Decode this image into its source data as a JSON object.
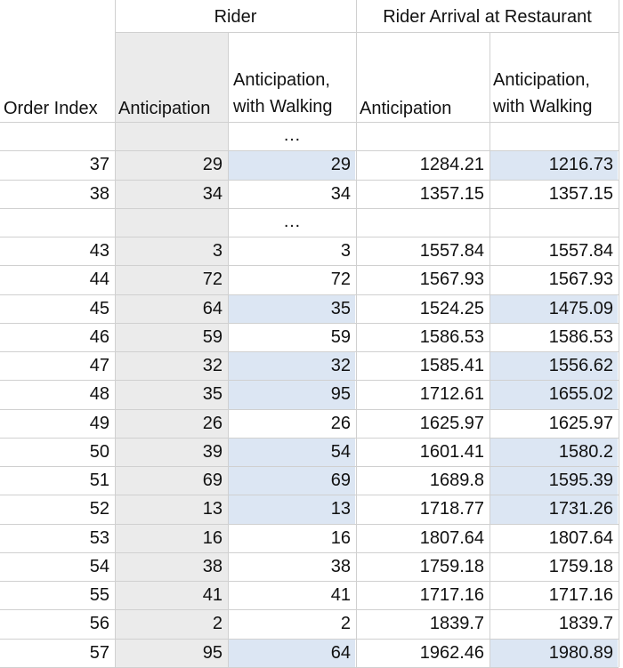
{
  "colors": {
    "grey_band": "#ebebeb",
    "blue_highlight": "#dce6f3",
    "grid": "#d0d0d0",
    "text": "#111111"
  },
  "groups": {
    "rider": "Rider",
    "arrival": "Rider Arrival at Restaurant"
  },
  "headers": {
    "order_index": "Order Index",
    "rider_anticipation": "Anticipation",
    "rider_walking": "Anticipation, with Walking",
    "arrival_anticipation": "Anticipation",
    "arrival_walking": "Anticipation, with Walking"
  },
  "ellipsis": "…",
  "rows": [
    {
      "type": "gap"
    },
    {
      "type": "data",
      "cells": [
        "37",
        "29",
        "29",
        "1284.21",
        "1216.73"
      ],
      "hl": true
    },
    {
      "type": "data",
      "cells": [
        "38",
        "34",
        "34",
        "1357.15",
        "1357.15"
      ],
      "hl": false
    },
    {
      "type": "gap"
    },
    {
      "type": "data",
      "cells": [
        "43",
        "3",
        "3",
        "1557.84",
        "1557.84"
      ],
      "hl": false
    },
    {
      "type": "data",
      "cells": [
        "44",
        "72",
        "72",
        "1567.93",
        "1567.93"
      ],
      "hl": false
    },
    {
      "type": "data",
      "cells": [
        "45",
        "64",
        "35",
        "1524.25",
        "1475.09"
      ],
      "hl": true
    },
    {
      "type": "data",
      "cells": [
        "46",
        "59",
        "59",
        "1586.53",
        "1586.53"
      ],
      "hl": false
    },
    {
      "type": "data",
      "cells": [
        "47",
        "32",
        "32",
        "1585.41",
        "1556.62"
      ],
      "hl": true
    },
    {
      "type": "data",
      "cells": [
        "48",
        "35",
        "95",
        "1712.61",
        "1655.02"
      ],
      "hl": true
    },
    {
      "type": "data",
      "cells": [
        "49",
        "26",
        "26",
        "1625.97",
        "1625.97"
      ],
      "hl": false
    },
    {
      "type": "data",
      "cells": [
        "50",
        "39",
        "54",
        "1601.41",
        "1580.2"
      ],
      "hl": true
    },
    {
      "type": "data",
      "cells": [
        "51",
        "69",
        "69",
        "1689.8",
        "1595.39"
      ],
      "hl": true
    },
    {
      "type": "data",
      "cells": [
        "52",
        "13",
        "13",
        "1718.77",
        "1731.26"
      ],
      "hl": true
    },
    {
      "type": "data",
      "cells": [
        "53",
        "16",
        "16",
        "1807.64",
        "1807.64"
      ],
      "hl": false
    },
    {
      "type": "data",
      "cells": [
        "54",
        "38",
        "38",
        "1759.18",
        "1759.18"
      ],
      "hl": false
    },
    {
      "type": "data",
      "cells": [
        "55",
        "41",
        "41",
        "1717.16",
        "1717.16"
      ],
      "hl": false
    },
    {
      "type": "data",
      "cells": [
        "56",
        "2",
        "2",
        "1839.7",
        "1839.7"
      ],
      "hl": false
    },
    {
      "type": "data",
      "cells": [
        "57",
        "95",
        "64",
        "1962.46",
        "1980.89"
      ],
      "hl": true
    }
  ]
}
